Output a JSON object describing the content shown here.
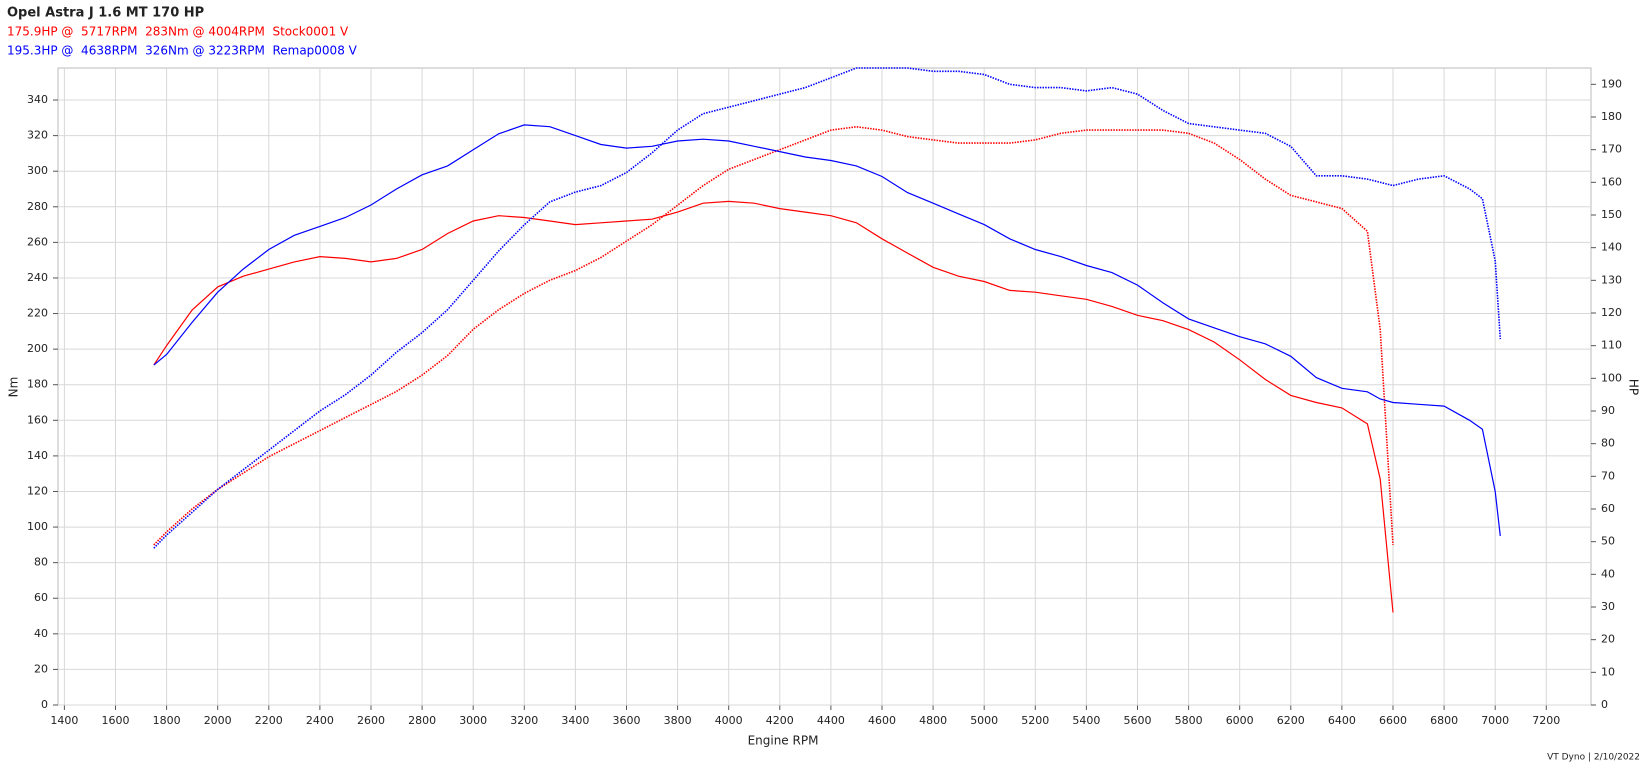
{
  "chart_data": {
    "type": "line",
    "title": "Opel Astra J 1.6 MT 170 HP",
    "header_lines": [
      {
        "text": "175.9HP @  5717RPM  283Nm @ 4004RPM  Stock0001 V",
        "color": "#ff0000"
      },
      {
        "text": "195.3HP @  4638RPM  326Nm @ 3223RPM  Remap0008 V",
        "color": "#0000ff"
      }
    ],
    "x_label": "Engine RPM",
    "y_label": "Nm",
    "y2_label": "HP",
    "footer": "VT Dyno | 2/10/2022",
    "grid": true,
    "x": [
      1750,
      1800,
      1900,
      2000,
      2100,
      2200,
      2300,
      2400,
      2500,
      2600,
      2700,
      2800,
      2900,
      3000,
      3100,
      3200,
      3300,
      3400,
      3500,
      3600,
      3700,
      3800,
      3900,
      4000,
      4100,
      4200,
      4300,
      4400,
      4500,
      4600,
      4700,
      4800,
      4900,
      5000,
      5100,
      5200,
      5300,
      5400,
      5500,
      5600,
      5700,
      5800,
      5900,
      6000,
      6100,
      6200,
      6300,
      6400,
      6500,
      6550,
      6600,
      6700,
      6800,
      6900,
      6950,
      7000,
      7020
    ],
    "xlim": [
      1375,
      7375
    ],
    "xticks": [
      1400,
      1600,
      1800,
      2000,
      2200,
      2400,
      2600,
      2800,
      3000,
      3200,
      3400,
      3600,
      3800,
      4000,
      4200,
      4400,
      4600,
      4800,
      5000,
      5200,
      5400,
      5600,
      5800,
      6000,
      6200,
      6400,
      6600,
      6800,
      7000,
      7200
    ],
    "ylim": [
      0,
      358
    ],
    "yticks": [
      0,
      20,
      40,
      60,
      80,
      100,
      120,
      140,
      160,
      180,
      200,
      220,
      240,
      260,
      280,
      300,
      320,
      340
    ],
    "y2lim": [
      0,
      195
    ],
    "y2ticks": [
      0,
      10,
      20,
      30,
      40,
      50,
      60,
      70,
      80,
      90,
      100,
      110,
      120,
      130,
      140,
      150,
      160,
      170,
      180,
      190
    ],
    "series": [
      {
        "color": "#ff0000",
        "axis": "y",
        "style": "solid",
        "values": [
          191,
          202,
          222,
          235,
          241,
          245,
          249,
          252,
          251,
          249,
          251,
          256,
          265,
          272,
          275,
          274,
          272,
          270,
          271,
          272,
          273,
          277,
          282,
          283,
          282,
          279,
          277,
          275,
          271,
          262,
          254,
          246,
          241,
          238,
          233,
          232,
          230,
          228,
          224,
          219,
          216,
          211,
          204,
          194,
          183,
          174,
          170,
          167,
          158,
          127,
          52,
          null,
          null,
          null,
          null,
          null,
          null
        ]
      },
      {
        "color": "#ff0000",
        "axis": "y2",
        "style": "dotted",
        "values": [
          49,
          53,
          60,
          66,
          71,
          76,
          80,
          84,
          88,
          92,
          96,
          101,
          107,
          115,
          121,
          126,
          130,
          133,
          137,
          142,
          147,
          153,
          159,
          164,
          167,
          170,
          173,
          176,
          177,
          176,
          174,
          173,
          172,
          172,
          172,
          173,
          175,
          176,
          176,
          176,
          176,
          175,
          172,
          167,
          161,
          156,
          154,
          152,
          145,
          115,
          49,
          null,
          null,
          null,
          null,
          null,
          null
        ]
      },
      {
        "color": "#0000ff",
        "axis": "y",
        "style": "solid",
        "values": [
          191,
          197,
          215,
          232,
          245,
          256,
          264,
          269,
          274,
          281,
          290,
          298,
          303,
          312,
          321,
          326,
          325,
          320,
          315,
          313,
          314,
          317,
          318,
          317,
          314,
          311,
          308,
          306,
          303,
          297,
          288,
          282,
          276,
          270,
          262,
          256,
          252,
          247,
          243,
          236,
          226,
          217,
          212,
          207,
          203,
          196,
          184,
          178,
          176,
          172,
          170,
          169,
          168,
          160,
          155,
          120,
          95
        ]
      },
      {
        "color": "#0000ff",
        "axis": "y2",
        "style": "dotted",
        "values": [
          48,
          52,
          59,
          66,
          72,
          78,
          84,
          90,
          95,
          101,
          108,
          114,
          121,
          130,
          139,
          147,
          154,
          157,
          159,
          163,
          169,
          176,
          181,
          183,
          185,
          187,
          189,
          192,
          195,
          195,
          195,
          194,
          194,
          193,
          190,
          189,
          189,
          188,
          189,
          187,
          182,
          178,
          177,
          176,
          175,
          171,
          162,
          162,
          161,
          160,
          159,
          161,
          162,
          158,
          155,
          136,
          112
        ]
      }
    ]
  }
}
